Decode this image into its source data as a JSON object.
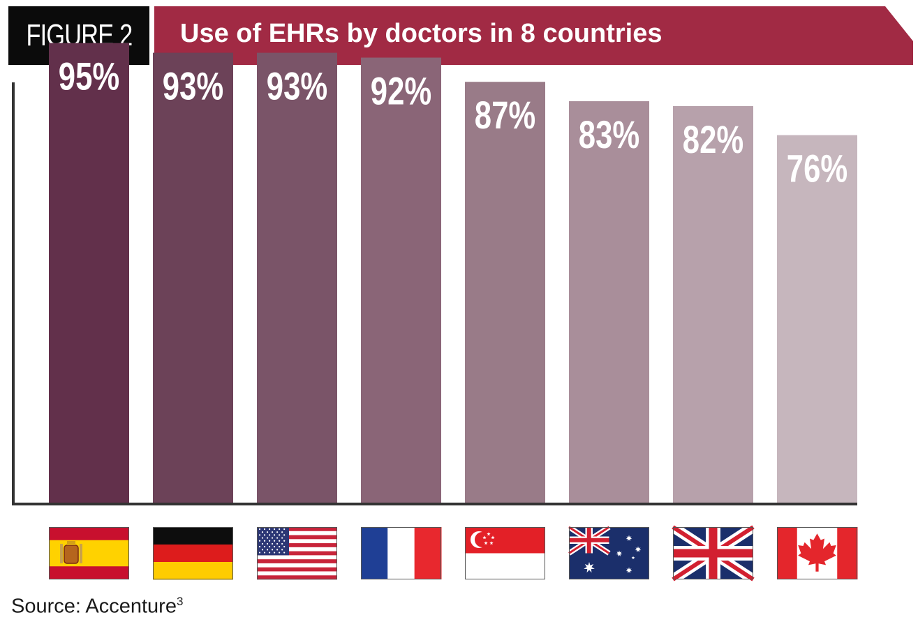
{
  "figure_label": "FIGURE 2",
  "source_text": "Source: Accenture",
  "source_superscript": "3",
  "chart_data": {
    "type": "bar",
    "title": "Use of EHRs by doctors in 8 countries",
    "xlabel": "",
    "ylabel": "",
    "categories": [
      "Spain",
      "Germany",
      "United States",
      "France",
      "Singapore",
      "Australia",
      "United Kingdom",
      "Canada"
    ],
    "values": [
      95,
      93,
      93,
      92,
      87,
      83,
      82,
      76
    ],
    "value_labels": [
      "95%",
      "93%",
      "93%",
      "92%",
      "87%",
      "83%",
      "82%",
      "76%"
    ],
    "bar_colors": [
      "#62304b",
      "#6c4258",
      "#7a5468",
      "#8a6577",
      "#997b88",
      "#a98e9a",
      "#b7a1ab",
      "#c6b6bd"
    ],
    "ylim": [
      0,
      100
    ],
    "grid": false,
    "legend": "none",
    "flag_icons": [
      "spain-flag-icon",
      "germany-flag-icon",
      "usa-flag-icon",
      "france-flag-icon",
      "singapore-flag-icon",
      "australia-flag-icon",
      "uk-flag-icon",
      "canada-flag-icon"
    ]
  },
  "colors": {
    "banner": "#a12a44",
    "figure_box": "#0b0b0b",
    "axis": "#333333"
  }
}
